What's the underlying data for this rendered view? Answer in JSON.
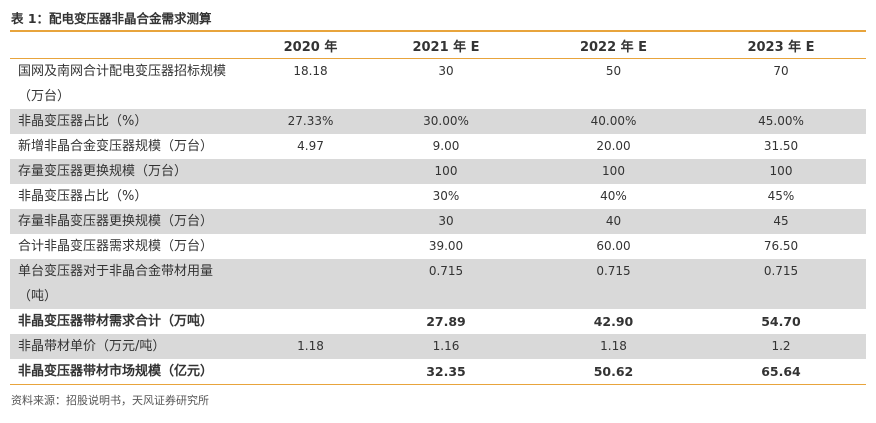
{
  "caption": "表 1：配电变压器非晶合金需求测算",
  "headers": [
    "",
    "2020 年",
    "2021 年 E",
    "2022 年 E",
    "2023 年 E"
  ],
  "rows": [
    {
      "label": "国网及南网合计配电变压器招标规模（万台）",
      "values": [
        "18.18",
        "30",
        "50",
        "70"
      ]
    },
    {
      "label": "非晶变压器占比（%）",
      "values": [
        "27.33%",
        "30.00%",
        "40.00%",
        "45.00%"
      ]
    },
    {
      "label": "新增非晶合金变压器规模（万台）",
      "values": [
        "4.97",
        "9.00",
        "20.00",
        "31.50"
      ]
    },
    {
      "label": "存量变压器更换规模（万台）",
      "values": [
        "",
        "100",
        "100",
        "100"
      ]
    },
    {
      "label": "非晶变压器占比（%）",
      "values": [
        "",
        "30%",
        "40%",
        "45%"
      ]
    },
    {
      "label": "存量非晶变压器更换规模（万台）",
      "values": [
        "",
        "30",
        "40",
        "45"
      ]
    },
    {
      "label": "合计非晶变压器需求规模（万台）",
      "values": [
        "",
        "39.00",
        "60.00",
        "76.50"
      ]
    },
    {
      "label": "单台变压器对于非晶合金带材用量（吨）",
      "values": [
        "",
        "0.715",
        "0.715",
        "0.715"
      ]
    },
    {
      "label": "非晶变压器带材需求合计（万吨）",
      "values": [
        "",
        "27.89",
        "42.90",
        "54.70"
      ]
    },
    {
      "label": "非晶带材单价（万元/吨）",
      "values": [
        "1.18",
        "1.16",
        "1.18",
        "1.2"
      ]
    },
    {
      "label": "非晶变压器带材市场规模（亿元）",
      "values": [
        "",
        "32.35",
        "50.62",
        "65.64"
      ]
    }
  ],
  "source": "资料来源：招股说明书，天风证券研究所",
  "colors": {
    "accent": "#e8a43c",
    "shade": "#d9d9d9"
  }
}
